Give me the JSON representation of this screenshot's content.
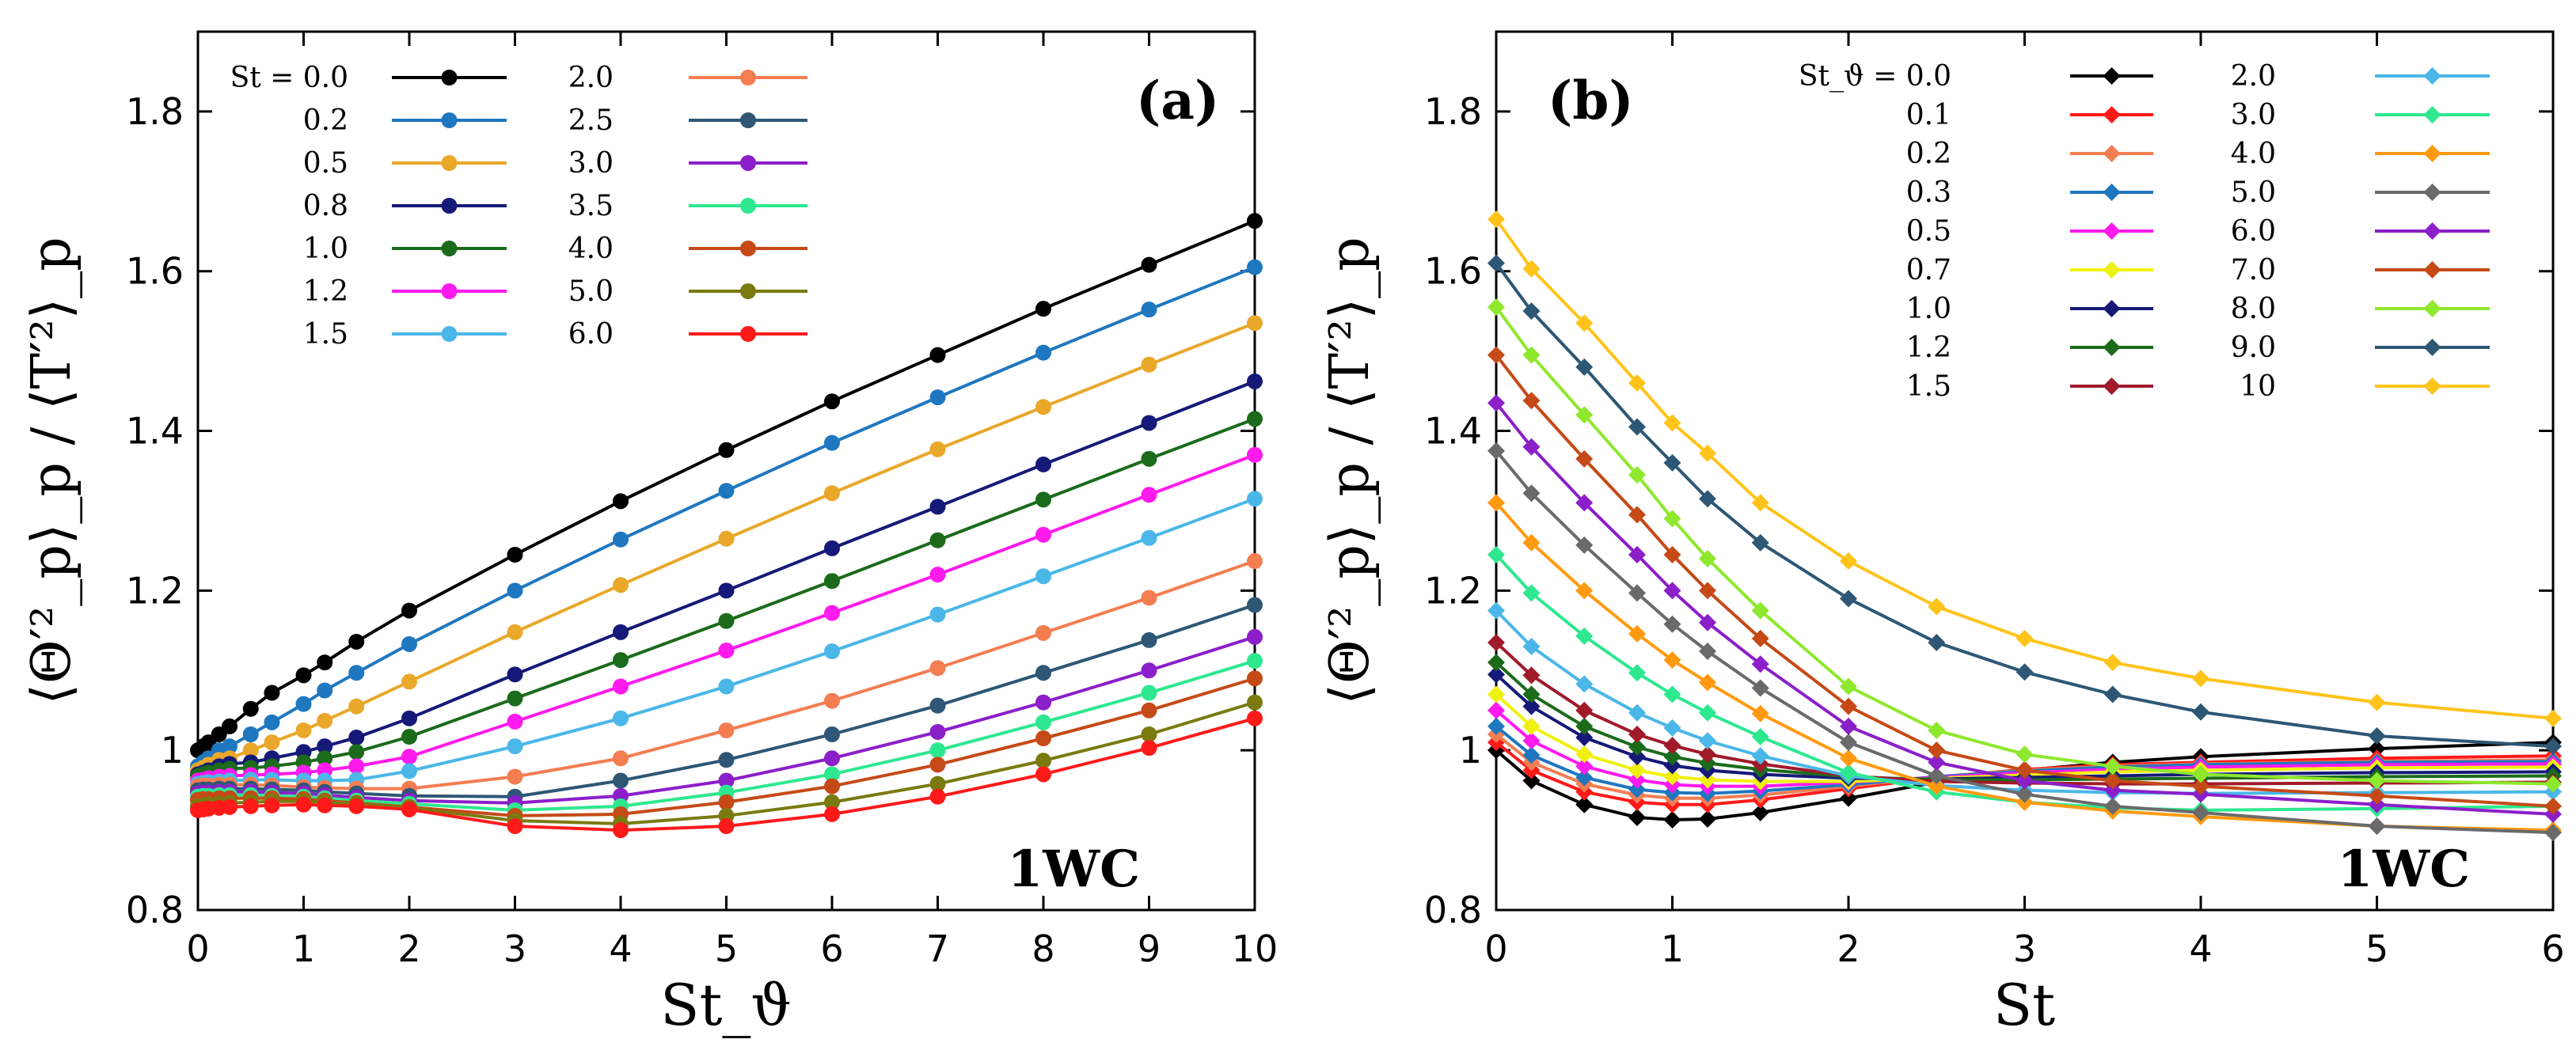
{
  "chart_data": [
    {
      "type": "line",
      "panel_label": "(a)",
      "annotation": "1WC",
      "ylabel": "⟨Θ′²_p⟩_p / ⟨T′²⟩_p",
      "xlabel": "St_ϑ",
      "xlim": [
        0,
        10
      ],
      "ylim": [
        0.8,
        1.9
      ],
      "xticks": [
        "0",
        "1",
        "2",
        "3",
        "4",
        "5",
        "6",
        "7",
        "8",
        "9",
        "10"
      ],
      "yticks": [
        "0.8",
        "1",
        "1.2",
        "1.4",
        "1.6",
        "1.8"
      ],
      "legend_prefix": "St = ",
      "marker": "circle",
      "x": [
        0,
        0.05,
        0.1,
        0.2,
        0.3,
        0.5,
        0.7,
        1.0,
        1.2,
        1.5,
        2,
        3,
        4,
        5,
        6,
        7,
        8,
        9,
        10
      ],
      "series": [
        {
          "name": "0.0",
          "color": "#000000",
          "values": [
            1.0,
            1.005,
            1.01,
            1.02,
            1.03,
            1.052,
            1.072,
            1.094,
            1.11,
            1.136,
            1.175,
            1.245,
            1.312,
            1.376,
            1.437,
            1.495,
            1.553,
            1.608,
            1.663
          ]
        },
        {
          "name": "0.2",
          "color": "#1f77c0",
          "values": [
            0.98,
            0.985,
            0.99,
            1.0,
            1.005,
            1.02,
            1.035,
            1.058,
            1.075,
            1.097,
            1.133,
            1.2,
            1.264,
            1.325,
            1.385,
            1.442,
            1.498,
            1.552,
            1.605
          ]
        },
        {
          "name": "0.5",
          "color": "#e9a82a",
          "values": [
            0.975,
            0.978,
            0.982,
            0.988,
            0.99,
            1.0,
            1.01,
            1.025,
            1.037,
            1.055,
            1.086,
            1.148,
            1.207,
            1.265,
            1.322,
            1.377,
            1.43,
            1.483,
            1.535
          ]
        },
        {
          "name": "0.8",
          "color": "#151a78",
          "values": [
            0.97,
            0.972,
            0.975,
            0.98,
            0.983,
            0.985,
            0.99,
            0.998,
            1.005,
            1.016,
            1.04,
            1.095,
            1.148,
            1.2,
            1.253,
            1.305,
            1.358,
            1.41,
            1.462
          ]
        },
        {
          "name": "1.0",
          "color": "#1b6b1b",
          "values": [
            0.968,
            0.97,
            0.972,
            0.975,
            0.977,
            0.978,
            0.98,
            0.985,
            0.99,
            0.998,
            1.017,
            1.065,
            1.113,
            1.162,
            1.212,
            1.263,
            1.314,
            1.365,
            1.415
          ]
        },
        {
          "name": "1.2",
          "color": "#ff1aee",
          "values": [
            0.962,
            0.963,
            0.965,
            0.967,
            0.968,
            0.969,
            0.97,
            0.972,
            0.975,
            0.98,
            0.992,
            1.036,
            1.08,
            1.125,
            1.172,
            1.22,
            1.27,
            1.32,
            1.37
          ]
        },
        {
          "name": "1.5",
          "color": "#4ab7e8",
          "values": [
            0.958,
            0.959,
            0.96,
            0.961,
            0.962,
            0.963,
            0.963,
            0.962,
            0.962,
            0.963,
            0.974,
            1.005,
            1.04,
            1.08,
            1.124,
            1.17,
            1.218,
            1.266,
            1.315
          ]
        },
        {
          "name": "2.0",
          "color": "#f47d52",
          "values": [
            0.955,
            0.956,
            0.956,
            0.957,
            0.957,
            0.957,
            0.956,
            0.954,
            0.953,
            0.952,
            0.952,
            0.967,
            0.99,
            1.025,
            1.062,
            1.103,
            1.147,
            1.191,
            1.237
          ]
        },
        {
          "name": "2.5",
          "color": "#2d5775",
          "values": [
            0.95,
            0.951,
            0.951,
            0.952,
            0.952,
            0.952,
            0.951,
            0.95,
            0.948,
            0.946,
            0.943,
            0.942,
            0.962,
            0.988,
            1.02,
            1.056,
            1.097,
            1.138,
            1.182
          ]
        },
        {
          "name": "3.0",
          "color": "#8b1fc9",
          "values": [
            0.946,
            0.947,
            0.947,
            0.948,
            0.948,
            0.948,
            0.947,
            0.946,
            0.944,
            0.941,
            0.937,
            0.934,
            0.943,
            0.962,
            0.99,
            1.023,
            1.06,
            1.1,
            1.142
          ]
        },
        {
          "name": "3.5",
          "color": "#2ee88f",
          "values": [
            0.942,
            0.943,
            0.943,
            0.944,
            0.944,
            0.944,
            0.943,
            0.942,
            0.94,
            0.937,
            0.933,
            0.925,
            0.93,
            0.947,
            0.97,
            1.0,
            1.035,
            1.072,
            1.112
          ]
        },
        {
          "name": "4.0",
          "color": "#c54a17",
          "values": [
            0.938,
            0.939,
            0.939,
            0.94,
            0.94,
            0.94,
            0.94,
            0.939,
            0.937,
            0.934,
            0.929,
            0.918,
            0.92,
            0.935,
            0.955,
            0.982,
            1.015,
            1.05,
            1.09
          ]
        },
        {
          "name": "5.0",
          "color": "#7a7a10",
          "values": [
            0.93,
            0.931,
            0.932,
            0.933,
            0.934,
            0.935,
            0.936,
            0.936,
            0.935,
            0.933,
            0.928,
            0.912,
            0.908,
            0.918,
            0.935,
            0.958,
            0.987,
            1.02,
            1.06
          ]
        },
        {
          "name": "6.0",
          "color": "#ff1a1a",
          "values": [
            0.925,
            0.926,
            0.927,
            0.928,
            0.929,
            0.93,
            0.931,
            0.932,
            0.931,
            0.93,
            0.926,
            0.905,
            0.9,
            0.905,
            0.92,
            0.942,
            0.97,
            1.003,
            1.04
          ]
        }
      ]
    },
    {
      "type": "line",
      "panel_label": "(b)",
      "annotation": "1WC",
      "ylabel": "⟨Θ′²_p⟩_p / ⟨T′²⟩_p",
      "xlabel": "St",
      "xlim": [
        0,
        6
      ],
      "ylim": [
        0.8,
        1.9
      ],
      "xticks": [
        "0",
        "1",
        "2",
        "3",
        "4",
        "5",
        "6"
      ],
      "yticks": [
        "0.8",
        "1",
        "1.2",
        "1.4",
        "1.6",
        "1.8"
      ],
      "legend_prefix": "St_ϑ = ",
      "marker": "diamond",
      "x": [
        0,
        0.2,
        0.5,
        0.8,
        1.0,
        1.2,
        1.5,
        2,
        2.5,
        3,
        3.5,
        4,
        5,
        6
      ],
      "series": [
        {
          "name": "0.0",
          "color": "#000000",
          "values": [
            1.0,
            0.962,
            0.932,
            0.916,
            0.913,
            0.914,
            0.922,
            0.94,
            0.96,
            0.975,
            0.985,
            0.992,
            1.002,
            1.01
          ]
        },
        {
          "name": "0.1",
          "color": "#ff1a1a",
          "values": [
            1.01,
            0.975,
            0.948,
            0.935,
            0.932,
            0.932,
            0.938,
            0.952,
            0.966,
            0.976,
            0.982,
            0.985,
            0.99,
            0.993
          ]
        },
        {
          "name": "0.2",
          "color": "#f47d52",
          "values": [
            1.02,
            0.985,
            0.958,
            0.944,
            0.94,
            0.94,
            0.944,
            0.955,
            0.967,
            0.975,
            0.98,
            0.983,
            0.986,
            0.988
          ]
        },
        {
          "name": "0.3",
          "color": "#1f77c0",
          "values": [
            1.03,
            0.994,
            0.966,
            0.951,
            0.947,
            0.946,
            0.949,
            0.957,
            0.967,
            0.974,
            0.979,
            0.982,
            0.985,
            0.986
          ]
        },
        {
          "name": "0.5",
          "color": "#ff1aee",
          "values": [
            1.05,
            1.012,
            0.98,
            0.963,
            0.957,
            0.955,
            0.955,
            0.96,
            0.966,
            0.972,
            0.976,
            0.979,
            0.982,
            0.983
          ]
        },
        {
          "name": "0.7",
          "color": "#f0f010",
          "values": [
            1.07,
            1.03,
            0.995,
            0.975,
            0.967,
            0.963,
            0.961,
            0.961,
            0.965,
            0.969,
            0.973,
            0.975,
            0.978,
            0.979
          ]
        },
        {
          "name": "1.0",
          "color": "#151a78",
          "values": [
            1.095,
            1.055,
            1.016,
            0.992,
            0.981,
            0.975,
            0.97,
            0.965,
            0.964,
            0.966,
            0.968,
            0.97,
            0.972,
            0.973
          ]
        },
        {
          "name": "1.2",
          "color": "#1b6b1b",
          "values": [
            1.11,
            1.07,
            1.03,
            1.004,
            0.992,
            0.984,
            0.976,
            0.967,
            0.963,
            0.963,
            0.964,
            0.965,
            0.967,
            0.968
          ]
        },
        {
          "name": "1.5",
          "color": "#a01a2a",
          "values": [
            1.135,
            1.094,
            1.05,
            1.02,
            1.006,
            0.995,
            0.983,
            0.968,
            0.961,
            0.959,
            0.958,
            0.958,
            0.959,
            0.96
          ]
        },
        {
          "name": "2.0",
          "color": "#4ab7e8",
          "values": [
            1.175,
            1.13,
            1.083,
            1.047,
            1.028,
            1.012,
            0.993,
            0.968,
            0.956,
            0.95,
            0.947,
            0.946,
            0.947,
            0.948
          ]
        },
        {
          "name": "3.0",
          "color": "#2ee88f",
          "values": [
            1.245,
            1.197,
            1.143,
            1.097,
            1.07,
            1.047,
            1.017,
            0.972,
            0.948,
            0.935,
            0.928,
            0.925,
            0.927,
            0.93
          ]
        },
        {
          "name": "4.0",
          "color": "#ff9a10",
          "values": [
            1.31,
            1.26,
            1.2,
            1.146,
            1.113,
            1.085,
            1.046,
            0.99,
            0.955,
            0.935,
            0.924,
            0.917,
            0.905,
            0.9
          ]
        },
        {
          "name": "5.0",
          "color": "#6a6a6a",
          "values": [
            1.375,
            1.322,
            1.257,
            1.197,
            1.158,
            1.124,
            1.078,
            1.01,
            0.968,
            0.945,
            0.93,
            0.922,
            0.905,
            0.897
          ]
        },
        {
          "name": "6.0",
          "color": "#8b1fc9",
          "values": [
            1.435,
            1.38,
            1.31,
            1.245,
            1.2,
            1.16,
            1.108,
            1.03,
            0.985,
            0.962,
            0.95,
            0.945,
            0.932,
            0.92
          ]
        },
        {
          "name": "7.0",
          "color": "#c54a17",
          "values": [
            1.495,
            1.438,
            1.365,
            1.295,
            1.245,
            1.2,
            1.14,
            1.055,
            1.0,
            0.975,
            0.962,
            0.955,
            0.943,
            0.93
          ]
        },
        {
          "name": "8.0",
          "color": "#8ee82e",
          "values": [
            1.555,
            1.495,
            1.42,
            1.345,
            1.29,
            1.24,
            1.175,
            1.08,
            1.025,
            0.995,
            0.98,
            0.97,
            0.962,
            0.958
          ]
        },
        {
          "name": "9.0",
          "color": "#2d5775",
          "values": [
            1.61,
            1.55,
            1.48,
            1.405,
            1.36,
            1.315,
            1.26,
            1.19,
            1.135,
            1.098,
            1.07,
            1.048,
            1.018,
            1.005
          ]
        },
        {
          "name": "10",
          "color": "#ffc41a",
          "values": [
            1.665,
            1.603,
            1.535,
            1.46,
            1.41,
            1.372,
            1.31,
            1.237,
            1.18,
            1.14,
            1.11,
            1.09,
            1.06,
            1.04
          ]
        }
      ]
    }
  ]
}
